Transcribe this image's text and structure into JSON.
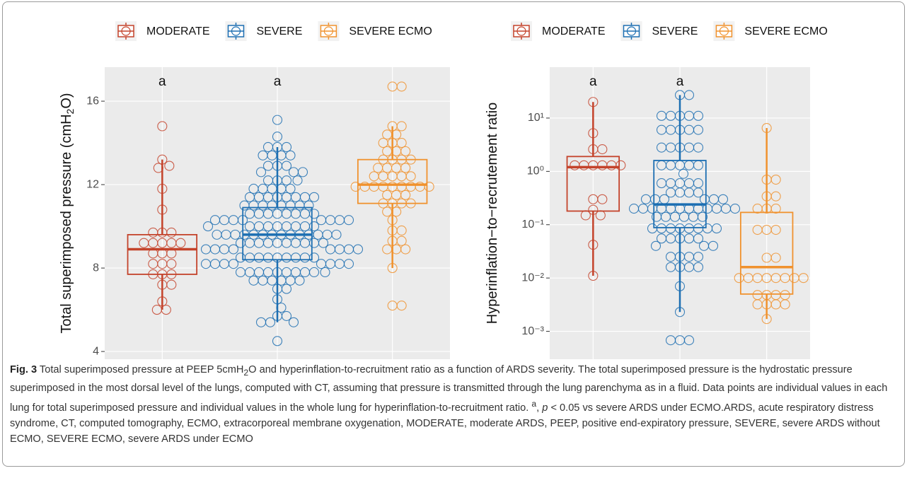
{
  "chart_data": [
    {
      "type": "box-swarm",
      "y_label": [
        "Total superimposed pressure (cmH",
        "2",
        "O)"
      ],
      "ylim": [
        3.63,
        17.63
      ],
      "yticks": [
        4,
        8,
        12,
        16
      ],
      "grid": true,
      "log_y": false,
      "annotations": [
        "a",
        "a",
        null
      ],
      "series": [
        {
          "name": "MODERATE",
          "color": "#c4432b",
          "box": {
            "whisker_low": 6.0,
            "q1": 7.7,
            "median": 8.9,
            "q3": 9.6,
            "whisker_high": 13.2
          },
          "values": [
            14.8,
            13.2,
            12.9,
            12.8,
            11.8,
            10.8,
            9.7,
            9.7,
            9.7,
            9.2,
            9.2,
            9.2,
            9.2,
            9.2,
            8.7,
            8.7,
            8.7,
            8.2,
            8.2,
            8.2,
            7.7,
            7.7,
            7.7,
            7.2,
            7.2,
            6.4,
            6.0,
            6.0
          ]
        },
        {
          "name": "SEVERE",
          "color": "#1d6fb2",
          "box": {
            "whisker_low": 5.4,
            "q1": 8.4,
            "median": 9.6,
            "q3": 10.9,
            "whisker_high": 13.8
          },
          "values": [
            15.1,
            14.3,
            13.8,
            13.8,
            13.8,
            13.4,
            13.4,
            13.4,
            13.4,
            12.9,
            12.9,
            12.9,
            12.6,
            12.6,
            12.6,
            12.2,
            12.2,
            12.2,
            12.2,
            11.8,
            11.8,
            11.8,
            11.8,
            11.8,
            11.4,
            11.4,
            11.4,
            11.4,
            11.4,
            11.4,
            11.4,
            11.4,
            11.0,
            11.0,
            11.0,
            11.0,
            11.0,
            11.0,
            11.0,
            11.0,
            10.6,
            10.6,
            10.6,
            10.6,
            10.6,
            10.6,
            10.6,
            10.6,
            10.3,
            10.3,
            10.3,
            10.3,
            10.3,
            10.3,
            10.3,
            10.3,
            10.0,
            10.0,
            10.0,
            10.0,
            10.0,
            10.0,
            10.0,
            10.0,
            10.0,
            9.6,
            9.6,
            9.6,
            9.6,
            9.6,
            9.6,
            9.6,
            9.6,
            9.6,
            9.6,
            9.6,
            9.6,
            9.6,
            9.6,
            9.2,
            9.2,
            9.2,
            9.2,
            9.2,
            9.2,
            9.2,
            9.2,
            9.2,
            9.2,
            8.9,
            8.9,
            8.9,
            8.9,
            8.9,
            8.9,
            8.9,
            8.9,
            8.5,
            8.5,
            8.5,
            8.5,
            8.5,
            8.5,
            8.5,
            8.5,
            8.5,
            8.2,
            8.2,
            8.2,
            8.2,
            8.2,
            8.2,
            8.2,
            8.2,
            7.8,
            7.8,
            7.8,
            7.8,
            7.8,
            7.8,
            7.8,
            7.8,
            7.8,
            7.8,
            7.4,
            7.4,
            7.4,
            7.4,
            7.4,
            7.4,
            7.0,
            7.0,
            6.5,
            6.1,
            5.7,
            5.7,
            5.4,
            5.4,
            5.4,
            4.5
          ]
        },
        {
          "name": "SEVERE ECMO",
          "color": "#f0922e",
          "box": {
            "whisker_low": 8.0,
            "q1": 11.1,
            "median": 12.0,
            "q3": 13.2,
            "whisker_high": 14.8
          },
          "values": [
            16.7,
            16.7,
            14.8,
            14.8,
            14.4,
            14.4,
            14.0,
            14.0,
            14.0,
            13.6,
            13.6,
            13.6,
            13.2,
            13.2,
            13.2,
            13.2,
            12.8,
            12.8,
            12.8,
            12.8,
            12.4,
            12.4,
            12.4,
            12.4,
            12.4,
            11.9,
            11.9,
            11.9,
            11.9,
            11.9,
            11.9,
            11.9,
            11.9,
            11.9,
            11.5,
            11.5,
            11.5,
            11.1,
            11.1,
            11.1,
            11.1,
            10.7,
            10.7,
            10.3,
            9.8,
            9.8,
            9.3,
            9.3,
            8.9,
            8.9,
            8.9,
            8.0,
            6.2,
            6.2
          ]
        }
      ]
    },
    {
      "type": "box-swarm",
      "y_label": [
        "Hyperinflation−to−recrutement ratio"
      ],
      "ylim": [
        0.0003,
        90
      ],
      "log_y": true,
      "grid": true,
      "yticks": [
        {
          "value": 0.001,
          "label": "10⁻³"
        },
        {
          "value": 0.01,
          "label": "10⁻²"
        },
        {
          "value": 0.1,
          "label": "10⁻¹"
        },
        {
          "value": 1,
          "label": "10⁰"
        },
        {
          "value": 10,
          "label": "10¹"
        }
      ],
      "annotations": [
        "a",
        "a",
        null
      ],
      "series": [
        {
          "name": "MODERATE",
          "color": "#c4432b",
          "box": {
            "whisker_low": 0.011,
            "q1": 0.18,
            "median": 1.2,
            "q3": 1.9,
            "whisker_high": 20
          },
          "values": [
            20,
            5.2,
            2.6,
            2.6,
            1.3,
            1.3,
            1.3,
            1.3,
            1.3,
            1.3,
            0.3,
            0.3,
            0.19,
            0.15,
            0.15,
            0.042,
            0.011
          ]
        },
        {
          "name": "SEVERE",
          "color": "#1d6fb2",
          "box": {
            "whisker_low": 0.0023,
            "q1": 0.088,
            "median": 0.24,
            "q3": 1.6,
            "whisker_high": 27
          },
          "values": [
            27,
            27,
            11,
            11,
            11,
            11,
            11,
            6,
            6,
            6,
            6,
            6,
            2.8,
            2.8,
            2.8,
            2.8,
            2.8,
            1.3,
            1.3,
            1.3,
            1.3,
            1.3,
            0.9,
            0.6,
            0.6,
            0.6,
            0.6,
            0.6,
            0.4,
            0.4,
            0.4,
            0.4,
            0.3,
            0.3,
            0.3,
            0.3,
            0.3,
            0.3,
            0.2,
            0.2,
            0.2,
            0.2,
            0.2,
            0.2,
            0.2,
            0.2,
            0.2,
            0.2,
            0.2,
            0.2,
            0.14,
            0.14,
            0.14,
            0.14,
            0.14,
            0.14,
            0.085,
            0.085,
            0.085,
            0.085,
            0.085,
            0.085,
            0.085,
            0.085,
            0.055,
            0.055,
            0.055,
            0.055,
            0.055,
            0.04,
            0.04,
            0.04,
            0.025,
            0.025,
            0.025,
            0.025,
            0.016,
            0.016,
            0.016,
            0.016,
            0.007,
            0.0023,
            0.00068,
            0.00068,
            0.00068
          ]
        },
        {
          "name": "SEVERE ECMO",
          "color": "#f0922e",
          "box": {
            "whisker_low": 0.0017,
            "q1": 0.005,
            "median": 0.016,
            "q3": 0.17,
            "whisker_high": 6.5
          },
          "values": [
            6.5,
            0.7,
            0.7,
            0.34,
            0.34,
            0.2,
            0.2,
            0.2,
            0.08,
            0.08,
            0.08,
            0.024,
            0.024,
            0.01,
            0.01,
            0.01,
            0.01,
            0.01,
            0.01,
            0.01,
            0.01,
            0.0048,
            0.0048,
            0.0048,
            0.0048,
            0.0032,
            0.0032,
            0.0032,
            0.0032,
            0.0017
          ]
        }
      ]
    }
  ],
  "caption": {
    "label": "Fig. 3",
    "parts": [
      " Total superimposed pressure at PEEP 5cmH",
      "2",
      "O and hyperinflation-to-recruitment ratio as a function of ARDS severity. The total superimposed pressure is the hydrostatic pressure superimposed in the most dorsal level of the lungs, computed with CT, assuming that pressure is transmitted through the lung parenchyma as in a fluid. Data points are individual values in each lung for total superimposed pressure and individual values in the whole lung for hyperinflation-to-recruitment ratio. ",
      "a",
      ", ",
      "p",
      " < 0.05 vs severe ARDS under ECMO.ARDS, acute respiratory distress syndrome, CT, computed tomography, ECMO, extracorporeal membrane oxygenation, MODERATE, moderate ARDS, PEEP, positive end-expiratory pressure, SEVERE, severe ARDS without ECMO, SEVERE ECMO, severe ARDS under ECMO"
    ]
  }
}
